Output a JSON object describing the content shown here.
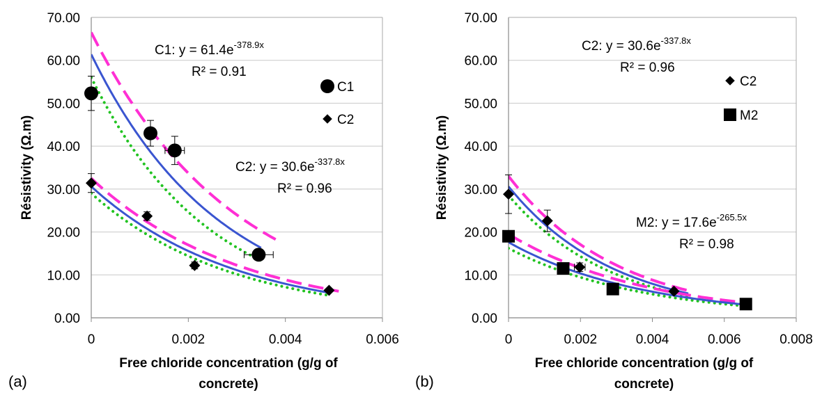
{
  "chart_data": [
    {
      "type": "scatter",
      "panel_label": "(a)",
      "xlabel_lines": [
        "Free chloride concentration (g/g of",
        "concrete)"
      ],
      "ylabel": "Résistivity (Ω.m)",
      "xlim": [
        0,
        0.006
      ],
      "ylim": [
        0,
        70
      ],
      "xticks": [
        "0",
        "0.002",
        "0.004",
        "0.006"
      ],
      "xtick_values": [
        0,
        0.002,
        0.004,
        0.006
      ],
      "yticks": [
        "0.00",
        "10.00",
        "20.00",
        "30.00",
        "40.00",
        "50.00",
        "60.00",
        "70.00"
      ],
      "ytick_values": [
        0,
        10,
        20,
        30,
        40,
        50,
        60,
        70
      ],
      "grid": "horizontal",
      "legend": [
        "C1",
        "C2"
      ],
      "series": [
        {
          "name": "C1",
          "marker": "circle",
          "points": [
            {
              "x": 0,
              "y": 52.3,
              "yerr": 4.0,
              "xerr": 0
            },
            {
              "x": 0.00122,
              "y": 43.0,
              "yerr": 3.0,
              "xerr": 0
            },
            {
              "x": 0.00172,
              "y": 39.0,
              "yerr": 3.3,
              "xerr": 0.0002
            },
            {
              "x": 0.00345,
              "y": 14.7,
              "yerr": 0,
              "xerr": 0.0003
            }
          ],
          "fit": {
            "a": 61.4,
            "b": 378.9,
            "x_end": 0.0035
          },
          "upper": {
            "a": 66.5,
            "b": 340,
            "x_end": 0.0038
          },
          "lower": {
            "a": 56.0,
            "b": 410,
            "x_end": 0.0035
          }
        },
        {
          "name": "C2",
          "marker": "diamond",
          "points": [
            {
              "x": 0,
              "y": 31.4,
              "yerr": 2.2,
              "xerr": 0
            },
            {
              "x": 0.00115,
              "y": 23.7,
              "yerr": 1.0,
              "xerr": 0
            },
            {
              "x": 0.00213,
              "y": 12.2,
              "yerr": 0.8,
              "xerr": 0
            },
            {
              "x": 0.0049,
              "y": 6.4,
              "yerr": 0,
              "xerr": 0
            }
          ],
          "fit": {
            "a": 30.6,
            "b": 337.8,
            "x_end": 0.0049
          },
          "upper": {
            "a": 32.5,
            "b": 325,
            "x_end": 0.0051
          },
          "lower": {
            "a": 29.0,
            "b": 350,
            "x_end": 0.0049
          }
        }
      ],
      "annotations": [
        {
          "label": "C1: y = 61.4e",
          "exp": "-378.9x",
          "r2": "R² = 0.91"
        },
        {
          "label": "C2: y = 30.6e",
          "exp": "-337.8x",
          "r2": "R² = 0.96"
        }
      ],
      "colors": {
        "fit": "#3a55d0",
        "upper": "#ff2fd4",
        "lower": "#22c322",
        "grid": "#c8c8c8"
      }
    },
    {
      "type": "scatter",
      "panel_label": "(b)",
      "xlabel_lines": [
        "Free chloride concentration (g/g of",
        "concrete)"
      ],
      "ylabel": "Résistivity (Ω.m)",
      "xlim": [
        0,
        0.008
      ],
      "ylim": [
        0,
        70
      ],
      "xticks": [
        "0",
        "0.002",
        "0.004",
        "0.006",
        "0.008"
      ],
      "xtick_values": [
        0,
        0.002,
        0.004,
        0.006,
        0.008
      ],
      "yticks": [
        "0.00",
        "10.00",
        "20.00",
        "30.00",
        "40.00",
        "50.00",
        "60.00",
        "70.00"
      ],
      "ytick_values": [
        0,
        10,
        20,
        30,
        40,
        50,
        60,
        70
      ],
      "grid": "horizontal",
      "legend": [
        "C2",
        "M2"
      ],
      "series": [
        {
          "name": "C2",
          "marker": "diamond",
          "points": [
            {
              "x": 0,
              "y": 28.8,
              "yerr": 4.5,
              "xerr": 0
            },
            {
              "x": 0.00108,
              "y": 22.6,
              "yerr": 2.5,
              "xerr": 0
            },
            {
              "x": 0.00198,
              "y": 11.8,
              "yerr": 1.0,
              "xerr": 0.00015
            },
            {
              "x": 0.0046,
              "y": 6.2,
              "yerr": 0,
              "xerr": 0
            }
          ],
          "fit": {
            "a": 30.6,
            "b": 337.8,
            "x_end": 0.005
          },
          "upper": {
            "a": 33.0,
            "b": 330,
            "x_end": 0.005
          },
          "lower": {
            "a": 28.5,
            "b": 345,
            "x_end": 0.005
          }
        },
        {
          "name": "M2",
          "marker": "square",
          "points": [
            {
              "x": 0,
              "y": 19.0,
              "yerr": 1.2,
              "xerr": 0
            },
            {
              "x": 0.00152,
              "y": 11.5,
              "yerr": 0.8,
              "xerr": 0
            },
            {
              "x": 0.0029,
              "y": 6.7,
              "yerr": 0,
              "xerr": 0
            },
            {
              "x": 0.0066,
              "y": 3.2,
              "yerr": 0,
              "xerr": 0
            }
          ],
          "fit": {
            "a": 17.6,
            "b": 265.5,
            "x_end": 0.0066
          },
          "upper": {
            "a": 19.5,
            "b": 260,
            "x_end": 0.0066
          },
          "lower": {
            "a": 16.2,
            "b": 270,
            "x_end": 0.0066
          }
        }
      ],
      "annotations": [
        {
          "label": "C2: y = 30.6e",
          "exp": "-337.8x",
          "r2": "R² = 0.96"
        },
        {
          "label": "M2: y = 17.6e",
          "exp": "-265.5x",
          "r2": "R² = 0.98"
        }
      ],
      "colors": {
        "fit": "#3a55d0",
        "upper": "#ff2fd4",
        "lower": "#22c322",
        "grid": "#c8c8c8"
      }
    }
  ]
}
